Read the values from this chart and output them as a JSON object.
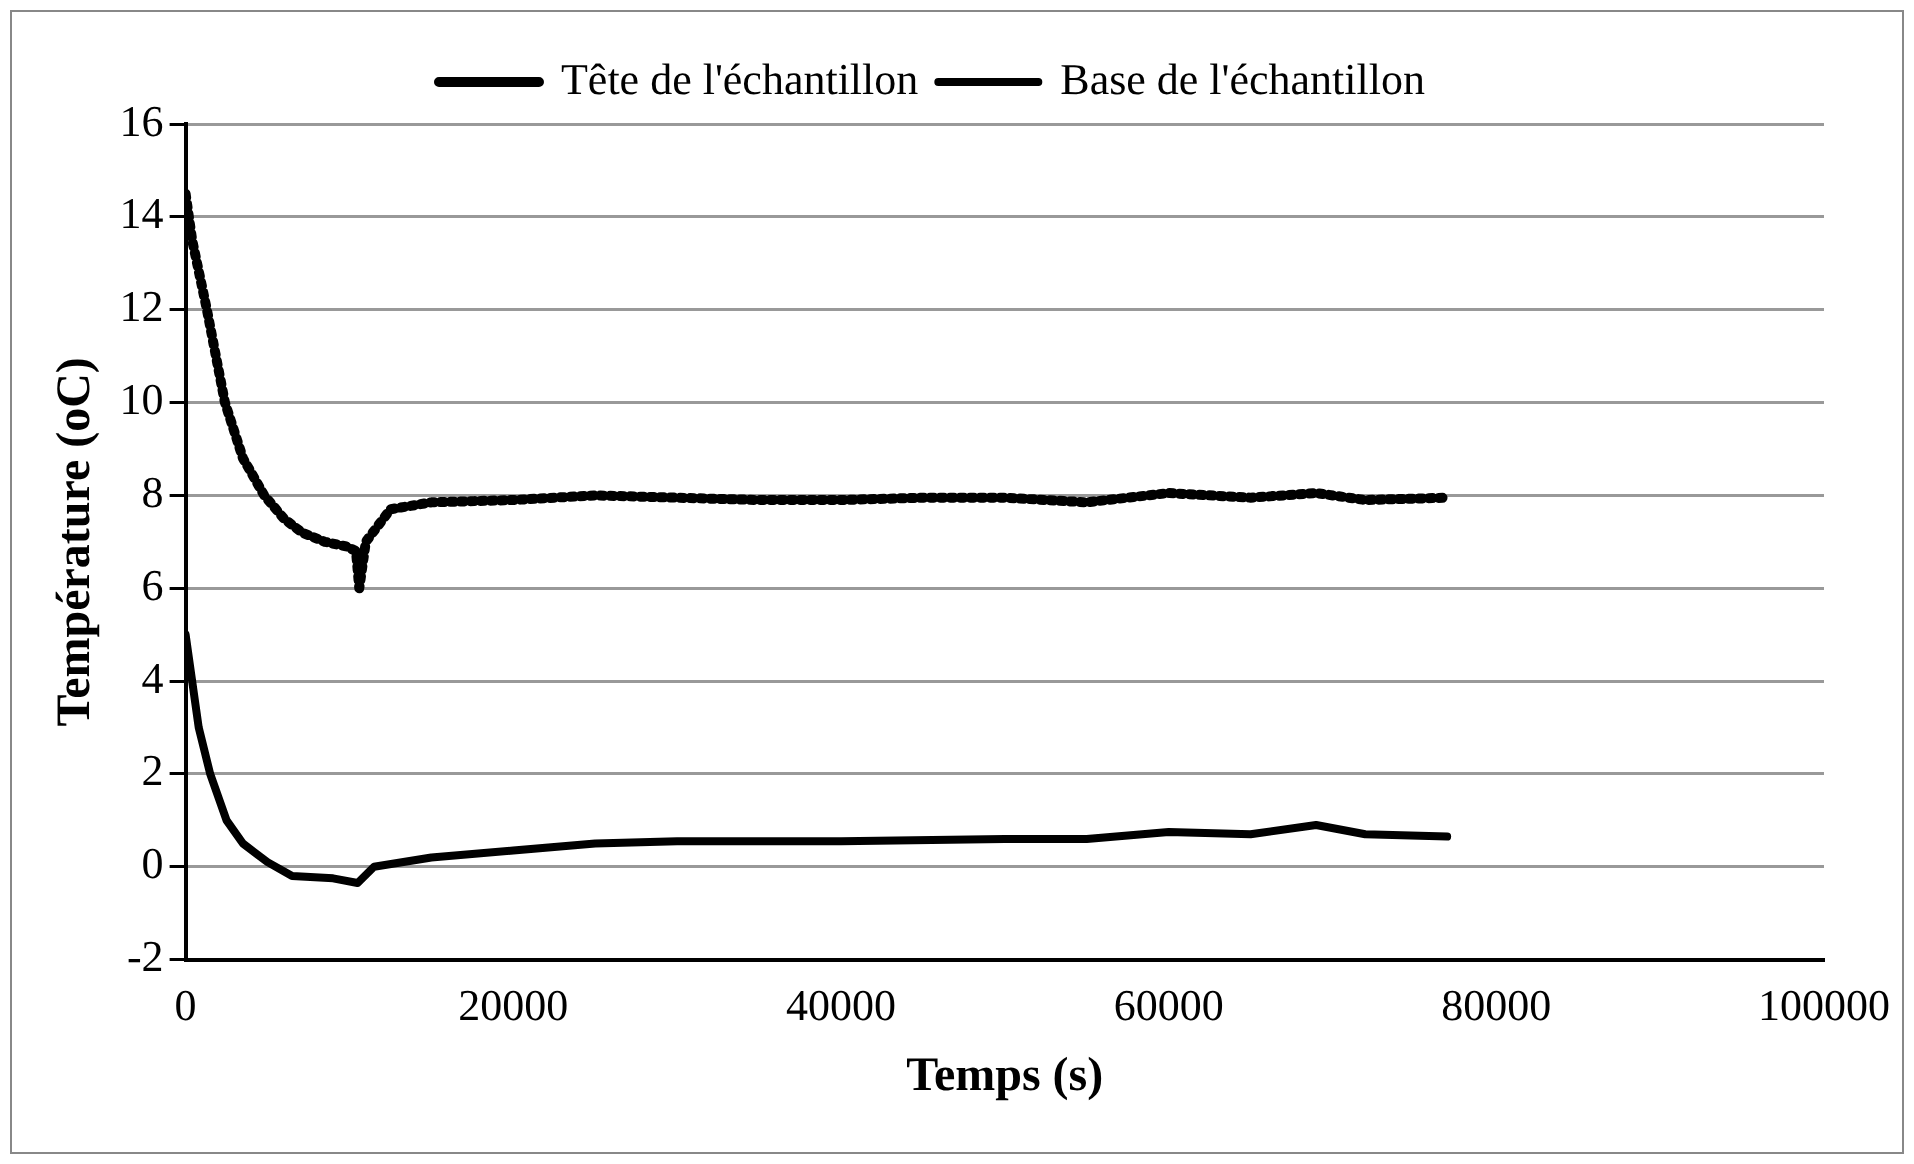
{
  "chart_data": {
    "type": "line",
    "xlabel": "Temps (s)",
    "ylabel": "Température (oC)",
    "xlim": [
      0,
      100000
    ],
    "xticks": [
      0,
      20000,
      40000,
      60000,
      80000,
      100000
    ],
    "ylim": [
      -2,
      16
    ],
    "yticks": [
      -2,
      0,
      2,
      4,
      6,
      8,
      10,
      12,
      14,
      16
    ],
    "grid": "y",
    "legend": "top",
    "marker": "none",
    "series": [
      {
        "name": "Tête de l'échantillon",
        "color": "#000000",
        "line_style": "dotted",
        "x": [
          0,
          400,
          1300,
          2400,
          3500,
          4800,
          6000,
          7100,
          8500,
          9800,
          10400,
          10600,
          11000,
          12500,
          15000,
          20000,
          25000,
          30000,
          35000,
          40000,
          45000,
          50000,
          55000,
          60000,
          65000,
          69000,
          72000,
          77000
        ],
        "values": [
          14.5,
          13.5,
          12,
          10,
          8.8,
          8,
          7.5,
          7.2,
          7,
          6.9,
          6.8,
          6,
          7,
          7.7,
          7.85,
          7.9,
          8,
          7.95,
          7.9,
          7.9,
          7.95,
          7.95,
          7.85,
          8.05,
          7.95,
          8.05,
          7.9,
          7.95
        ]
      },
      {
        "name": "Base de l'échantillon",
        "color": "#000000",
        "line_style": "solid",
        "x": [
          0,
          800,
          1500,
          2500,
          3500,
          5000,
          6500,
          9000,
          10500,
          11500,
          15000,
          20000,
          25000,
          30000,
          40000,
          50000,
          55000,
          60000,
          65000,
          69000,
          72000,
          77000
        ],
        "values": [
          5,
          3,
          2,
          1,
          0.5,
          0.1,
          -0.2,
          -0.25,
          -0.35,
          0,
          0.2,
          0.35,
          0.5,
          0.55,
          0.55,
          0.6,
          0.6,
          0.75,
          0.7,
          0.9,
          0.7,
          0.65
        ]
      }
    ]
  }
}
